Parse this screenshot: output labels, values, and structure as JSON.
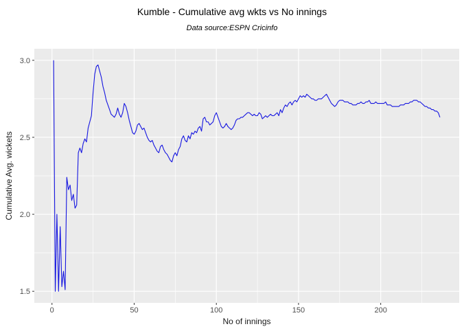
{
  "chart_data": {
    "type": "line",
    "title": "Kumble - Cumulative avg wkts vs No innings",
    "subtitle": "Data source:ESPN Cricinfo",
    "xlabel": "No of innings",
    "ylabel": "Cumulative Avg. wickets",
    "xlim": [
      -10.75,
      247.75
    ],
    "ylim": [
      1.425,
      3.075
    ],
    "x_ticks": [
      0,
      50,
      100,
      150,
      200
    ],
    "x_tick_labels": [
      "0",
      "50",
      "100",
      "150",
      "200"
    ],
    "x_minor_breaks": [
      25,
      75,
      125,
      175,
      225
    ],
    "y_ticks": [
      1.5,
      2.0,
      2.5,
      3.0
    ],
    "y_tick_labels": [
      "1.5",
      "2.0",
      "2.5",
      "3.0"
    ],
    "y_minor_breaks": [
      1.75,
      2.25,
      2.75
    ],
    "grid": "on",
    "legend_position": "none",
    "colors": {
      "line": "#1515e0",
      "panel_background": "#ebebeb",
      "gridline": "#ffffff",
      "tick_label": "#4d4d4d",
      "tick_mark": "#333333",
      "title_text": "#000000",
      "axis_title_text": "#1a1a1a",
      "figure_background": "#ffffff"
    },
    "series": [
      {
        "name": "cumulative-avg-wickets",
        "points": [
          [
            1,
            3.0
          ],
          [
            2,
            1.5
          ],
          [
            3,
            2.0
          ],
          [
            4,
            1.5
          ],
          [
            5,
            1.92
          ],
          [
            6,
            1.53
          ],
          [
            7,
            1.63
          ],
          [
            8,
            1.51
          ],
          [
            9,
            2.24
          ],
          [
            10,
            2.16
          ],
          [
            11,
            2.19
          ],
          [
            12,
            2.09
          ],
          [
            13,
            2.13
          ],
          [
            14,
            2.04
          ],
          [
            15,
            2.06
          ],
          [
            16,
            2.4
          ],
          [
            17,
            2.43
          ],
          [
            18,
            2.4
          ],
          [
            19,
            2.46
          ],
          [
            20,
            2.49
          ],
          [
            21,
            2.47
          ],
          [
            22,
            2.56
          ],
          [
            23,
            2.6
          ],
          [
            24,
            2.64
          ],
          [
            25,
            2.79
          ],
          [
            26,
            2.91
          ],
          [
            27,
            2.96
          ],
          [
            28,
            2.97
          ],
          [
            29,
            2.93
          ],
          [
            30,
            2.89
          ],
          [
            31,
            2.83
          ],
          [
            32,
            2.79
          ],
          [
            33,
            2.74
          ],
          [
            34,
            2.71
          ],
          [
            35,
            2.68
          ],
          [
            36,
            2.65
          ],
          [
            37,
            2.64
          ],
          [
            38,
            2.63
          ],
          [
            39,
            2.65
          ],
          [
            40,
            2.69
          ],
          [
            41,
            2.65
          ],
          [
            42,
            2.63
          ],
          [
            43,
            2.66
          ],
          [
            44,
            2.72
          ],
          [
            45,
            2.7
          ],
          [
            46,
            2.66
          ],
          [
            47,
            2.61
          ],
          [
            48,
            2.57
          ],
          [
            49,
            2.53
          ],
          [
            50,
            2.52
          ],
          [
            51,
            2.54
          ],
          [
            52,
            2.58
          ],
          [
            53,
            2.59
          ],
          [
            54,
            2.57
          ],
          [
            55,
            2.55
          ],
          [
            56,
            2.56
          ],
          [
            57,
            2.53
          ],
          [
            58,
            2.5
          ],
          [
            59,
            2.48
          ],
          [
            60,
            2.47
          ],
          [
            61,
            2.48
          ],
          [
            62,
            2.45
          ],
          [
            63,
            2.43
          ],
          [
            64,
            2.41
          ],
          [
            65,
            2.4
          ],
          [
            66,
            2.44
          ],
          [
            67,
            2.45
          ],
          [
            68,
            2.42
          ],
          [
            69,
            2.4
          ],
          [
            70,
            2.39
          ],
          [
            71,
            2.37
          ],
          [
            72,
            2.35
          ],
          [
            73,
            2.34
          ],
          [
            74,
            2.38
          ],
          [
            75,
            2.4
          ],
          [
            76,
            2.38
          ],
          [
            77,
            2.42
          ],
          [
            78,
            2.44
          ],
          [
            79,
            2.49
          ],
          [
            80,
            2.51
          ],
          [
            81,
            2.48
          ],
          [
            82,
            2.47
          ],
          [
            83,
            2.51
          ],
          [
            84,
            2.49
          ],
          [
            85,
            2.53
          ],
          [
            86,
            2.52
          ],
          [
            87,
            2.54
          ],
          [
            88,
            2.53
          ],
          [
            89,
            2.56
          ],
          [
            90,
            2.57
          ],
          [
            91,
            2.54
          ],
          [
            92,
            2.62
          ],
          [
            93,
            2.63
          ],
          [
            94,
            2.6
          ],
          [
            95,
            2.6
          ],
          [
            96,
            2.58
          ],
          [
            97,
            2.59
          ],
          [
            98,
            2.6
          ],
          [
            99,
            2.64
          ],
          [
            100,
            2.66
          ],
          [
            101,
            2.63
          ],
          [
            102,
            2.6
          ],
          [
            103,
            2.57
          ],
          [
            104,
            2.56
          ],
          [
            105,
            2.57
          ],
          [
            106,
            2.59
          ],
          [
            107,
            2.57
          ],
          [
            108,
            2.56
          ],
          [
            109,
            2.55
          ],
          [
            110,
            2.56
          ],
          [
            111,
            2.58
          ],
          [
            112,
            2.61
          ],
          [
            113,
            2.62
          ],
          [
            114,
            2.62
          ],
          [
            115,
            2.63
          ],
          [
            116,
            2.63
          ],
          [
            117,
            2.64
          ],
          [
            118,
            2.65
          ],
          [
            119,
            2.66
          ],
          [
            120,
            2.66
          ],
          [
            121,
            2.65
          ],
          [
            122,
            2.64
          ],
          [
            123,
            2.65
          ],
          [
            124,
            2.64
          ],
          [
            125,
            2.64
          ],
          [
            126,
            2.66
          ],
          [
            127,
            2.65
          ],
          [
            128,
            2.62
          ],
          [
            129,
            2.63
          ],
          [
            130,
            2.64
          ],
          [
            131,
            2.63
          ],
          [
            132,
            2.64
          ],
          [
            133,
            2.65
          ],
          [
            134,
            2.64
          ],
          [
            135,
            2.64
          ],
          [
            136,
            2.65
          ],
          [
            137,
            2.66
          ],
          [
            138,
            2.64
          ],
          [
            139,
            2.68
          ],
          [
            140,
            2.66
          ],
          [
            141,
            2.69
          ],
          [
            142,
            2.71
          ],
          [
            143,
            2.7
          ],
          [
            144,
            2.72
          ],
          [
            145,
            2.73
          ],
          [
            146,
            2.71
          ],
          [
            147,
            2.73
          ],
          [
            148,
            2.74
          ],
          [
            149,
            2.73
          ],
          [
            150,
            2.75
          ],
          [
            151,
            2.77
          ],
          [
            152,
            2.76
          ],
          [
            153,
            2.77
          ],
          [
            154,
            2.76
          ],
          [
            155,
            2.78
          ],
          [
            156,
            2.77
          ],
          [
            157,
            2.76
          ],
          [
            158,
            2.75
          ],
          [
            159,
            2.75
          ],
          [
            160,
            2.74
          ],
          [
            161,
            2.74
          ],
          [
            162,
            2.75
          ],
          [
            163,
            2.75
          ],
          [
            164,
            2.75
          ],
          [
            165,
            2.76
          ],
          [
            166,
            2.77
          ],
          [
            167,
            2.78
          ],
          [
            168,
            2.76
          ],
          [
            169,
            2.74
          ],
          [
            170,
            2.72
          ],
          [
            171,
            2.71
          ],
          [
            172,
            2.7
          ],
          [
            173,
            2.71
          ],
          [
            174,
            2.73
          ],
          [
            175,
            2.74
          ],
          [
            176,
            2.74
          ],
          [
            177,
            2.74
          ],
          [
            178,
            2.73
          ],
          [
            179,
            2.73
          ],
          [
            180,
            2.73
          ],
          [
            181,
            2.72
          ],
          [
            182,
            2.72
          ],
          [
            183,
            2.71
          ],
          [
            184,
            2.71
          ],
          [
            185,
            2.71
          ],
          [
            186,
            2.72
          ],
          [
            187,
            2.72
          ],
          [
            188,
            2.73
          ],
          [
            189,
            2.72
          ],
          [
            190,
            2.72
          ],
          [
            191,
            2.73
          ],
          [
            192,
            2.73
          ],
          [
            193,
            2.74
          ],
          [
            194,
            2.72
          ],
          [
            195,
            2.72
          ],
          [
            196,
            2.72
          ],
          [
            197,
            2.73
          ],
          [
            198,
            2.72
          ],
          [
            199,
            2.72
          ],
          [
            200,
            2.72
          ],
          [
            201,
            2.72
          ],
          [
            202,
            2.72
          ],
          [
            203,
            2.73
          ],
          [
            204,
            2.71
          ],
          [
            205,
            2.71
          ],
          [
            206,
            2.71
          ],
          [
            207,
            2.7
          ],
          [
            208,
            2.7
          ],
          [
            209,
            2.7
          ],
          [
            210,
            2.7
          ],
          [
            211,
            2.7
          ],
          [
            212,
            2.71
          ],
          [
            213,
            2.71
          ],
          [
            214,
            2.71
          ],
          [
            215,
            2.72
          ],
          [
            216,
            2.72
          ],
          [
            217,
            2.72
          ],
          [
            218,
            2.73
          ],
          [
            219,
            2.73
          ],
          [
            220,
            2.74
          ],
          [
            221,
            2.74
          ],
          [
            222,
            2.74
          ],
          [
            223,
            2.73
          ],
          [
            224,
            2.73
          ],
          [
            225,
            2.72
          ],
          [
            226,
            2.71
          ],
          [
            227,
            2.7
          ],
          [
            228,
            2.7
          ],
          [
            229,
            2.69
          ],
          [
            230,
            2.69
          ],
          [
            231,
            2.68
          ],
          [
            232,
            2.68
          ],
          [
            233,
            2.67
          ],
          [
            234,
            2.67
          ],
          [
            235,
            2.66
          ],
          [
            236,
            2.63
          ]
        ]
      }
    ]
  }
}
